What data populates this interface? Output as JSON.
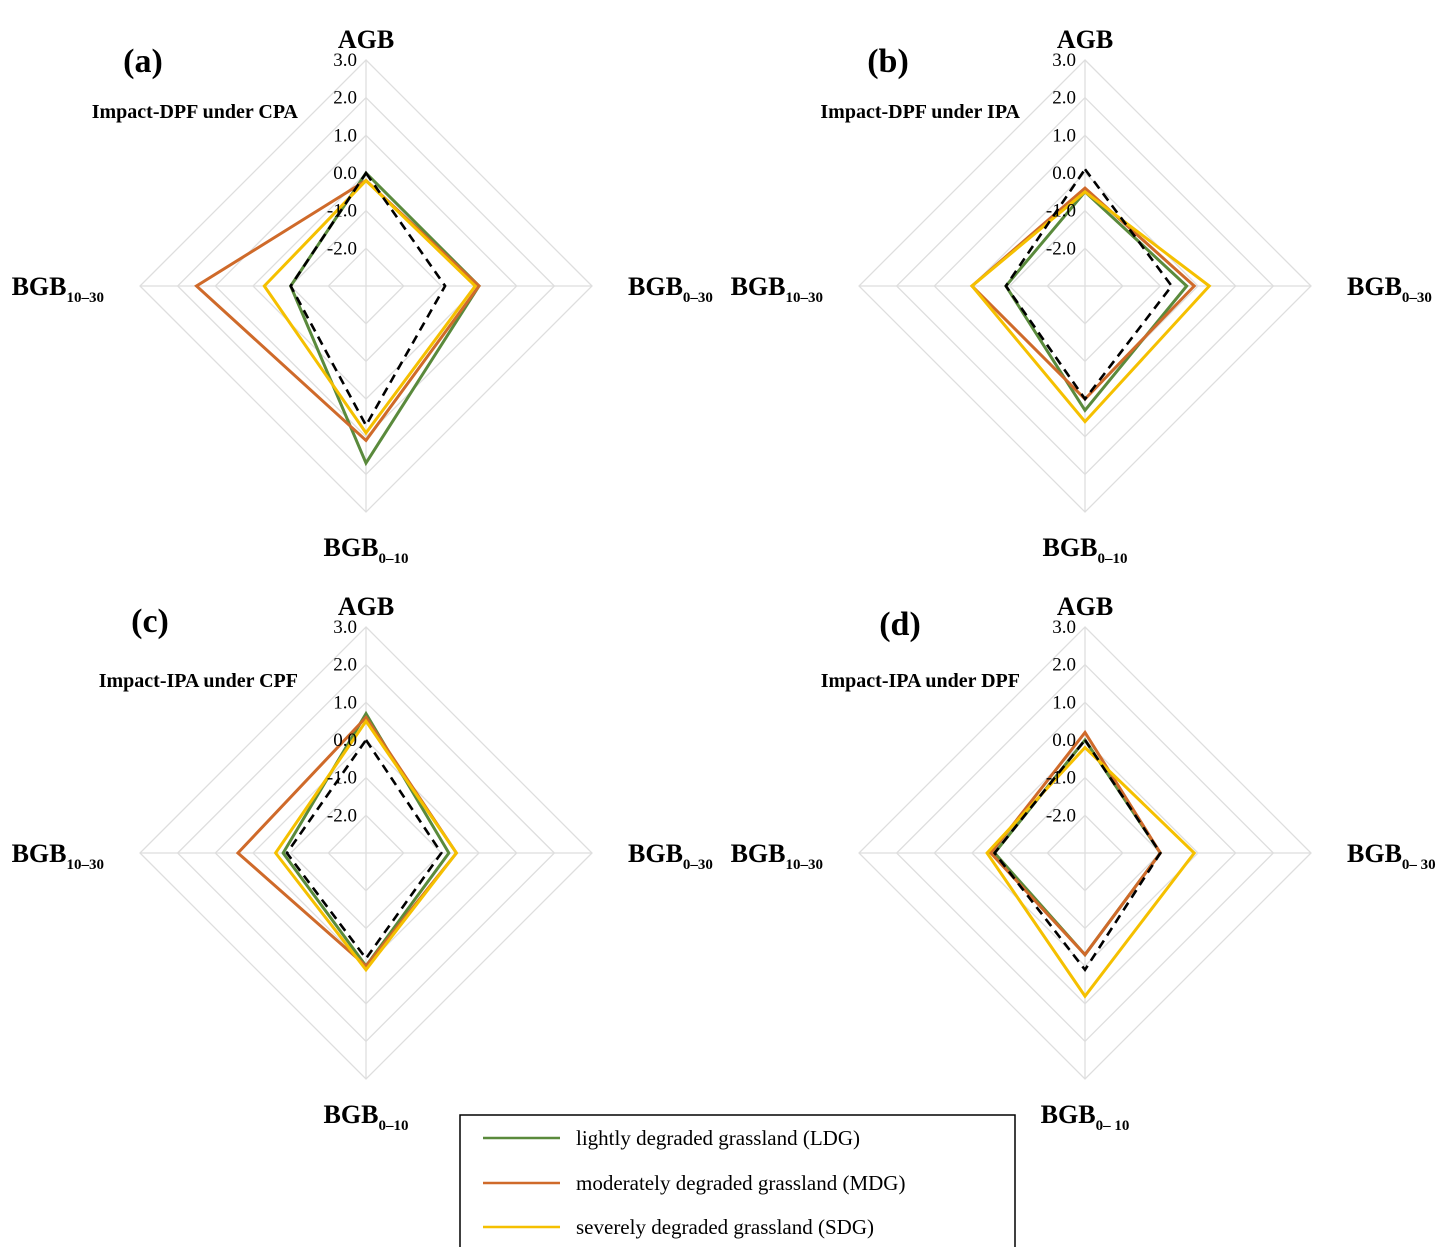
{
  "chart_data": [
    {
      "type": "radar",
      "panel_label": "(a)",
      "title": "Impact-DPF under CPA",
      "axes": [
        {
          "name": "AGB",
          "sub": ""
        },
        {
          "name": "BGB",
          "sub": "0–30"
        },
        {
          "name": "BGB",
          "sub": "0–10"
        },
        {
          "name": "BGB",
          "sub": "10–30"
        }
      ],
      "r_ticks": [
        "3.0",
        "2.0",
        "1.0",
        "0.0",
        "-1.0",
        "-2.0"
      ],
      "rlim": [
        -3.0,
        3.0
      ],
      "grid": true,
      "series": [
        {
          "name": "lightly degraded grassland (LDG)",
          "values": [
            0.0,
            0.0,
            1.7,
            -1.0
          ]
        },
        {
          "name": "moderately degraded grassland (MDG)",
          "values": [
            -0.2,
            0.0,
            1.1,
            1.5
          ]
        },
        {
          "name": "severely degraded grassland (SDG)",
          "values": [
            -0.2,
            -0.1,
            0.9,
            -0.3
          ]
        },
        {
          "name": "",
          "values": [
            0.0,
            -0.9,
            0.7,
            -1.0
          ],
          "style": "dashed"
        }
      ]
    },
    {
      "type": "radar",
      "panel_label": "(b)",
      "title": "Impact-DPF under IPA",
      "axes": [
        {
          "name": "AGB",
          "sub": ""
        },
        {
          "name": "BGB",
          "sub": "0–30"
        },
        {
          "name": "BGB",
          "sub": "0–10"
        },
        {
          "name": "BGB",
          "sub": "10–30"
        }
      ],
      "r_ticks": [
        "3.0",
        "2.0",
        "1.0",
        "0.0",
        "-1.0",
        "-2.0"
      ],
      "rlim": [
        -3.0,
        3.0
      ],
      "grid": true,
      "series": [
        {
          "name": "lightly degraded grassland (LDG)",
          "values": [
            -0.5,
            -0.3,
            0.3,
            -0.9
          ]
        },
        {
          "name": "moderately degraded grassland (MDG)",
          "values": [
            -0.4,
            -0.1,
            0.0,
            0.0
          ]
        },
        {
          "name": "severely degraded grassland (SDG)",
          "values": [
            -0.5,
            0.3,
            0.6,
            0.0
          ]
        },
        {
          "name": "",
          "values": [
            0.1,
            -0.7,
            0.0,
            -0.9
          ],
          "style": "dashed"
        }
      ]
    },
    {
      "type": "radar",
      "panel_label": "(c)",
      "title": "Impact-IPA under CPF",
      "axes": [
        {
          "name": "AGB",
          "sub": ""
        },
        {
          "name": "BGB",
          "sub": "0–30"
        },
        {
          "name": "BGB",
          "sub": "0–10"
        },
        {
          "name": "BGB",
          "sub": "10–30"
        }
      ],
      "r_ticks": [
        "3.0",
        "2.0",
        "1.0",
        "0.0",
        "-1.0",
        "-2.0"
      ],
      "rlim": [
        -3.0,
        3.0
      ],
      "grid": true,
      "series": [
        {
          "name": "lightly degraded grassland (LDG)",
          "values": [
            0.7,
            -0.8,
            0.0,
            -0.8
          ]
        },
        {
          "name": "moderately degraded grassland (MDG)",
          "values": [
            0.6,
            -0.6,
            0.0,
            0.4
          ]
        },
        {
          "name": "severely degraded grassland (SDG)",
          "values": [
            0.5,
            -0.6,
            0.1,
            -0.6
          ]
        },
        {
          "name": "",
          "values": [
            0.0,
            -1.0,
            -0.2,
            -0.9
          ],
          "style": "dashed"
        }
      ]
    },
    {
      "type": "radar",
      "panel_label": "(d)",
      "title": "Impact-IPA under DPF",
      "axes": [
        {
          "name": "AGB",
          "sub": ""
        },
        {
          "name": "BGB",
          "sub": "0– 30"
        },
        {
          "name": "BGB",
          "sub": "0– 10"
        },
        {
          "name": "BGB",
          "sub": "10–30"
        }
      ],
      "r_ticks": [
        "3.0",
        "2.0",
        "1.0",
        "0.0",
        "-1.0",
        "-2.0"
      ],
      "rlim": [
        -3.0,
        3.0
      ],
      "grid": true,
      "series": [
        {
          "name": "lightly degraded grassland (LDG)",
          "values": [
            0.0,
            -1.0,
            -0.3,
            -0.6
          ]
        },
        {
          "name": "moderately degraded grassland (MDG)",
          "values": [
            0.2,
            -1.0,
            -0.3,
            -0.5
          ]
        },
        {
          "name": "severely degraded grassland (SDG)",
          "values": [
            -0.2,
            -0.1,
            0.8,
            -0.4
          ]
        },
        {
          "name": "",
          "values": [
            0.0,
            -1.0,
            0.1,
            -0.6
          ],
          "style": "dashed"
        }
      ]
    }
  ],
  "legend": {
    "items": [
      {
        "label": "lightly degraded grassland (LDG)",
        "color": "#5a8a3c"
      },
      {
        "label": "moderately degraded grassland (MDG)",
        "color": "#cf6a2a"
      },
      {
        "label": "severely degraded grassland (SDG)",
        "color": "#f5c000"
      }
    ]
  },
  "colors": {
    "ldg": "#5a8a3c",
    "mdg": "#cf6a2a",
    "sdg": "#f5c000",
    "reference": "#000000",
    "grid": "#dedede"
  }
}
